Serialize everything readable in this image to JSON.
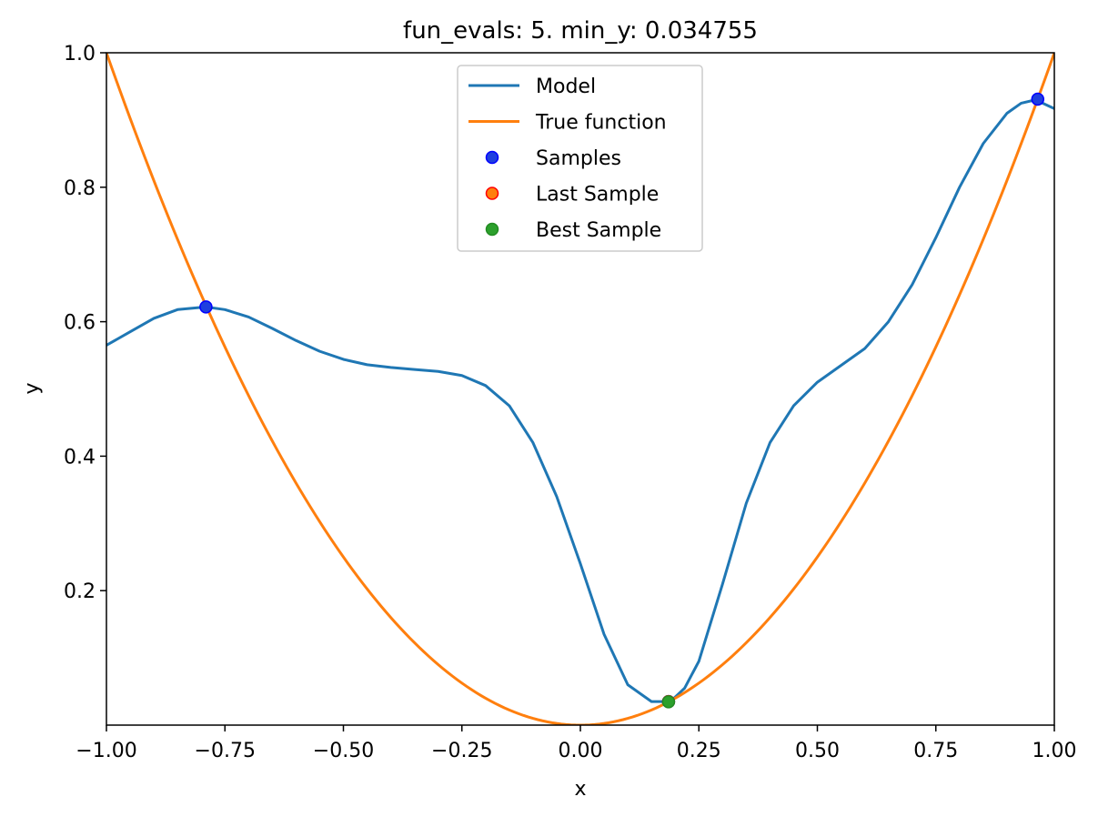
{
  "chart_data": {
    "type": "line",
    "title": "fun_evals: 5. min_y: 0.034755",
    "xlabel": "x",
    "ylabel": "y",
    "xlim": [
      -1.0,
      1.0
    ],
    "ylim": [
      0.0,
      1.0
    ],
    "xticks": [
      -1.0,
      -0.75,
      -0.5,
      -0.25,
      0.0,
      0.25,
      0.5,
      0.75,
      1.0
    ],
    "xtick_labels": [
      "−1.00",
      "−0.75",
      "−0.50",
      "−0.25",
      "0.00",
      "0.25",
      "0.50",
      "0.75",
      "1.00"
    ],
    "yticks": [
      0.2,
      0.4,
      0.6,
      0.8,
      1.0
    ],
    "ytick_labels": [
      "0.2",
      "0.4",
      "0.6",
      "0.8",
      "1.0"
    ],
    "grid": false,
    "legend_position": "top-center",
    "series": [
      {
        "name": "Model",
        "kind": "line",
        "color": "#1f77b4",
        "x": [
          -1.0,
          -0.95,
          -0.9,
          -0.85,
          -0.79,
          -0.75,
          -0.7,
          -0.65,
          -0.6,
          -0.55,
          -0.5,
          -0.45,
          -0.4,
          -0.35,
          -0.3,
          -0.25,
          -0.2,
          -0.15,
          -0.1,
          -0.05,
          0.0,
          0.05,
          0.1,
          0.15,
          0.19,
          0.22,
          0.25,
          0.3,
          0.35,
          0.4,
          0.45,
          0.5,
          0.55,
          0.6,
          0.65,
          0.7,
          0.75,
          0.8,
          0.85,
          0.9,
          0.93,
          0.96,
          1.0
        ],
        "y": [
          0.565,
          0.585,
          0.605,
          0.618,
          0.622,
          0.618,
          0.607,
          0.59,
          0.572,
          0.556,
          0.544,
          0.536,
          0.532,
          0.529,
          0.526,
          0.52,
          0.505,
          0.475,
          0.42,
          0.34,
          0.24,
          0.135,
          0.06,
          0.035,
          0.035,
          0.055,
          0.095,
          0.21,
          0.33,
          0.42,
          0.475,
          0.51,
          0.535,
          0.56,
          0.6,
          0.655,
          0.725,
          0.8,
          0.865,
          0.91,
          0.925,
          0.93,
          0.917
        ]
      },
      {
        "name": "True function",
        "kind": "line",
        "color": "#ff7f0e",
        "function": "x^2",
        "x": [
          -1.0,
          -0.9,
          -0.8,
          -0.7,
          -0.6,
          -0.5,
          -0.4,
          -0.3,
          -0.2,
          -0.1,
          0.0,
          0.1,
          0.2,
          0.3,
          0.4,
          0.5,
          0.6,
          0.7,
          0.8,
          0.9,
          1.0
        ],
        "y": [
          1.0,
          0.81,
          0.64,
          0.49,
          0.36,
          0.25,
          0.16,
          0.09,
          0.04,
          0.01,
          0.0,
          0.01,
          0.04,
          0.09,
          0.16,
          0.25,
          0.36,
          0.49,
          0.64,
          0.81,
          1.0
        ]
      },
      {
        "name": "Samples",
        "kind": "scatter",
        "color": "#1f3fdf",
        "edge": "#0000ff",
        "x": [
          -0.79,
          0.186,
          0.965
        ],
        "y": [
          0.622,
          0.035,
          0.931
        ]
      },
      {
        "name": "Last Sample",
        "kind": "scatter",
        "color": "#ff7f0e",
        "edge": "#ff0000",
        "x": [
          0.186
        ],
        "y": [
          0.035
        ]
      },
      {
        "name": "Best Sample",
        "kind": "scatter",
        "color": "#2ca02c",
        "edge": "#228b22",
        "x": [
          0.186
        ],
        "y": [
          0.034755
        ]
      }
    ]
  }
}
